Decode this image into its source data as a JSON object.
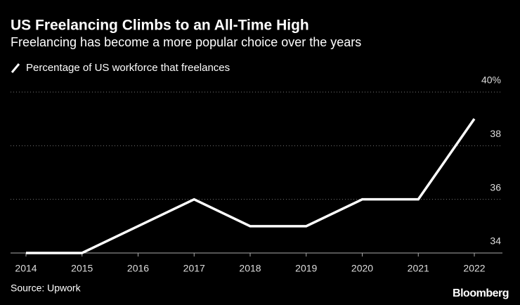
{
  "chart_data": {
    "type": "line",
    "title": "US Freelancing Climbs to an All-Time High",
    "subtitle": "Freelancing has become a more popular choice over the years",
    "categories": [
      "2014",
      "2015",
      "2016",
      "2017",
      "2018",
      "2019",
      "2020",
      "2021",
      "2022"
    ],
    "series": [
      {
        "name": "Percentage of US workforce that freelances",
        "color": "#ffffff",
        "values": [
          34,
          34,
          35,
          36,
          35,
          35,
          36,
          36,
          39
        ]
      }
    ],
    "ylim": [
      34,
      40
    ],
    "yticks": [
      34,
      36,
      38,
      {
        "value": 40,
        "label": "40%"
      }
    ],
    "grid": true,
    "source": "Source: Upwork",
    "brand": "Bloomberg"
  }
}
